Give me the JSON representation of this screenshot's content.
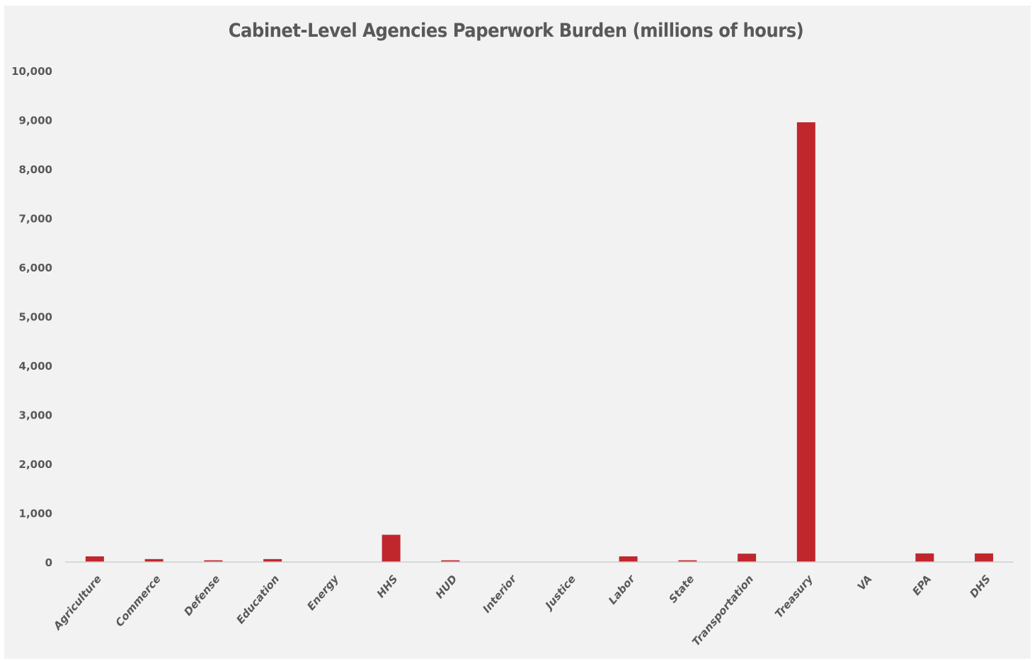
{
  "chart_data": {
    "type": "bar",
    "title": "Cabinet-Level Agencies Paperwork Burden (millions of hours)",
    "xlabel": "",
    "ylabel": "",
    "ylim": [
      0,
      10000
    ],
    "yticks": [
      0,
      1000,
      2000,
      3000,
      4000,
      5000,
      6000,
      7000,
      8000,
      9000,
      10000
    ],
    "ytick_labels": [
      "0",
      "1,000",
      "2,000",
      "3,000",
      "4,000",
      "5,000",
      "6,000",
      "7,000",
      "8,000",
      "9,000",
      "10,000"
    ],
    "categories": [
      "Agriculture",
      "Commerce",
      "Defense",
      "Education",
      "Energy",
      "HHS",
      "HUD",
      "Interior",
      "Justice",
      "Labor",
      "State",
      "Transportation",
      "Treasury",
      "VA",
      "EPA",
      "DHS"
    ],
    "values": [
      115,
      60,
      35,
      60,
      5,
      555,
      35,
      5,
      5,
      115,
      35,
      170,
      8950,
      5,
      175,
      175
    ],
    "grid": false,
    "legend": "none",
    "bar_color": "#c0272d"
  }
}
